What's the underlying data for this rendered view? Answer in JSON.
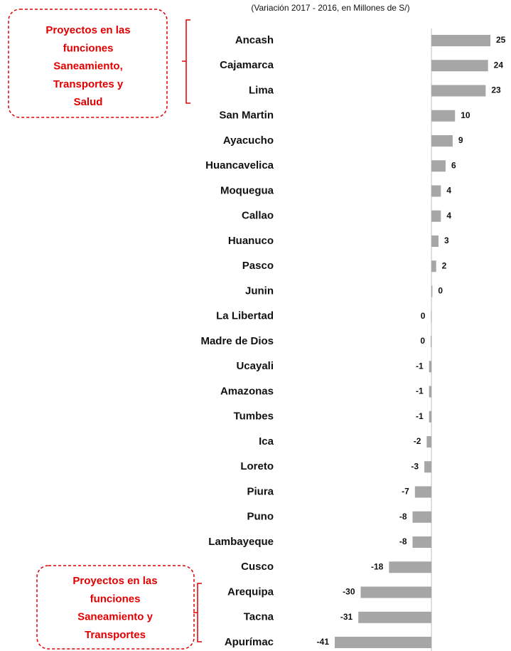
{
  "chart_data": {
    "type": "hbar",
    "subtitle": "(Variación 2017 - 2016, en Millones de S/)",
    "categories": [
      "Ancash",
      "Cajamarca",
      "Lima",
      "San Martin",
      "Ayacucho",
      "Huancavelica",
      "Moquegua",
      "Callao",
      "Huanuco",
      "Pasco",
      "Junin",
      "La Libertad",
      "Madre de Dios",
      "Ucayali",
      "Amazonas",
      "Tumbes",
      "Ica",
      "Loreto",
      "Piura",
      "Puno",
      "Lambayeque",
      "Cusco",
      "Arequipa",
      "Tacna",
      "Apurímac"
    ],
    "values": [
      25,
      24,
      23,
      10,
      9,
      6,
      4,
      4,
      3,
      2,
      0.4,
      -0.2,
      -0.3,
      -1,
      -1,
      -1,
      -2,
      -3,
      -7,
      -8,
      -8,
      -18,
      -30,
      -31,
      -41
    ],
    "value_labels": [
      "25",
      "24",
      "23",
      "10",
      "9",
      "6",
      "4",
      "4",
      "3",
      "2",
      "0",
      "0",
      "0",
      "-1",
      "-1",
      "-1",
      "-2",
      "-3",
      "-7",
      "-8",
      "-8",
      "-18",
      "-30",
      "-31",
      "-41"
    ],
    "color": "#a6a6a6",
    "xlim": [
      -41,
      25
    ],
    "annotations": [
      {
        "lines": [
          "Proyectos en las",
          "funciones",
          "Saneamiento,",
          "Transportes y",
          "Salud"
        ]
      },
      {
        "lines": [
          "Proyectos en las",
          "funciones",
          "Saneamiento y",
          "Transportes"
        ]
      }
    ]
  }
}
